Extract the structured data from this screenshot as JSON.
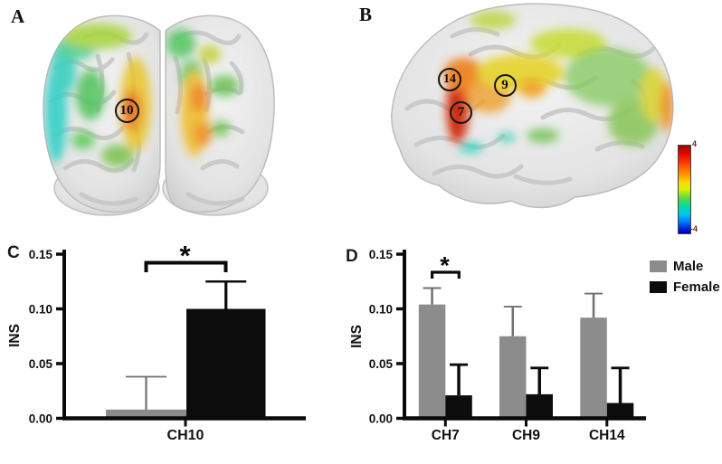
{
  "figure": {
    "panel_labels": {
      "A": "A",
      "B": "B",
      "C": "C",
      "D": "D"
    },
    "brain_markers": {
      "A": [
        {
          "channel": "10"
        }
      ],
      "B": [
        {
          "channel": "14"
        },
        {
          "channel": "9"
        },
        {
          "channel": "7"
        }
      ]
    },
    "colorbar": {
      "max": "4",
      "min": "-4"
    }
  },
  "chart_data": [
    {
      "id": "C",
      "type": "bar",
      "title": "",
      "categories": [
        "CH10"
      ],
      "series": [
        {
          "name": "Male",
          "color": "#8c8c8c",
          "values": [
            0.008
          ],
          "errors_up": [
            0.03
          ]
        },
        {
          "name": "Female",
          "color": "#0c0c0c",
          "values": [
            0.1
          ],
          "errors_up": [
            0.025
          ]
        }
      ],
      "xlabel": "",
      "ylabel": "INS",
      "ylim": [
        0,
        0.15
      ],
      "yticks": [
        0,
        0.05,
        0.1,
        0.15
      ],
      "ytick_labels": [
        "0.00",
        "0.05",
        "0.10",
        "0.15"
      ],
      "grid": false,
      "legend_position": "none",
      "significance": [
        {
          "category": "CH10",
          "between": [
            "Male",
            "Female"
          ],
          "label": "*"
        }
      ]
    },
    {
      "id": "D",
      "type": "bar",
      "title": "",
      "categories": [
        "CH7",
        "CH9",
        "CH14"
      ],
      "series": [
        {
          "name": "Male",
          "color": "#8c8c8c",
          "values": [
            0.104,
            0.075,
            0.092
          ],
          "errors_up": [
            0.015,
            0.027,
            0.022
          ]
        },
        {
          "name": "Female",
          "color": "#0c0c0c",
          "values": [
            0.021,
            0.022,
            0.014
          ],
          "errors_up": [
            0.028,
            0.024,
            0.032
          ]
        }
      ],
      "xlabel": "",
      "ylabel": "INS",
      "ylim": [
        0,
        0.15
      ],
      "yticks": [
        0,
        0.05,
        0.1,
        0.15
      ],
      "ytick_labels": [
        "0.00",
        "0.05",
        "0.10",
        "0.15"
      ],
      "grid": false,
      "legend_position": "top-right",
      "significance": [
        {
          "category": "CH7",
          "between": [
            "Male",
            "Female"
          ],
          "label": "*"
        }
      ]
    }
  ]
}
